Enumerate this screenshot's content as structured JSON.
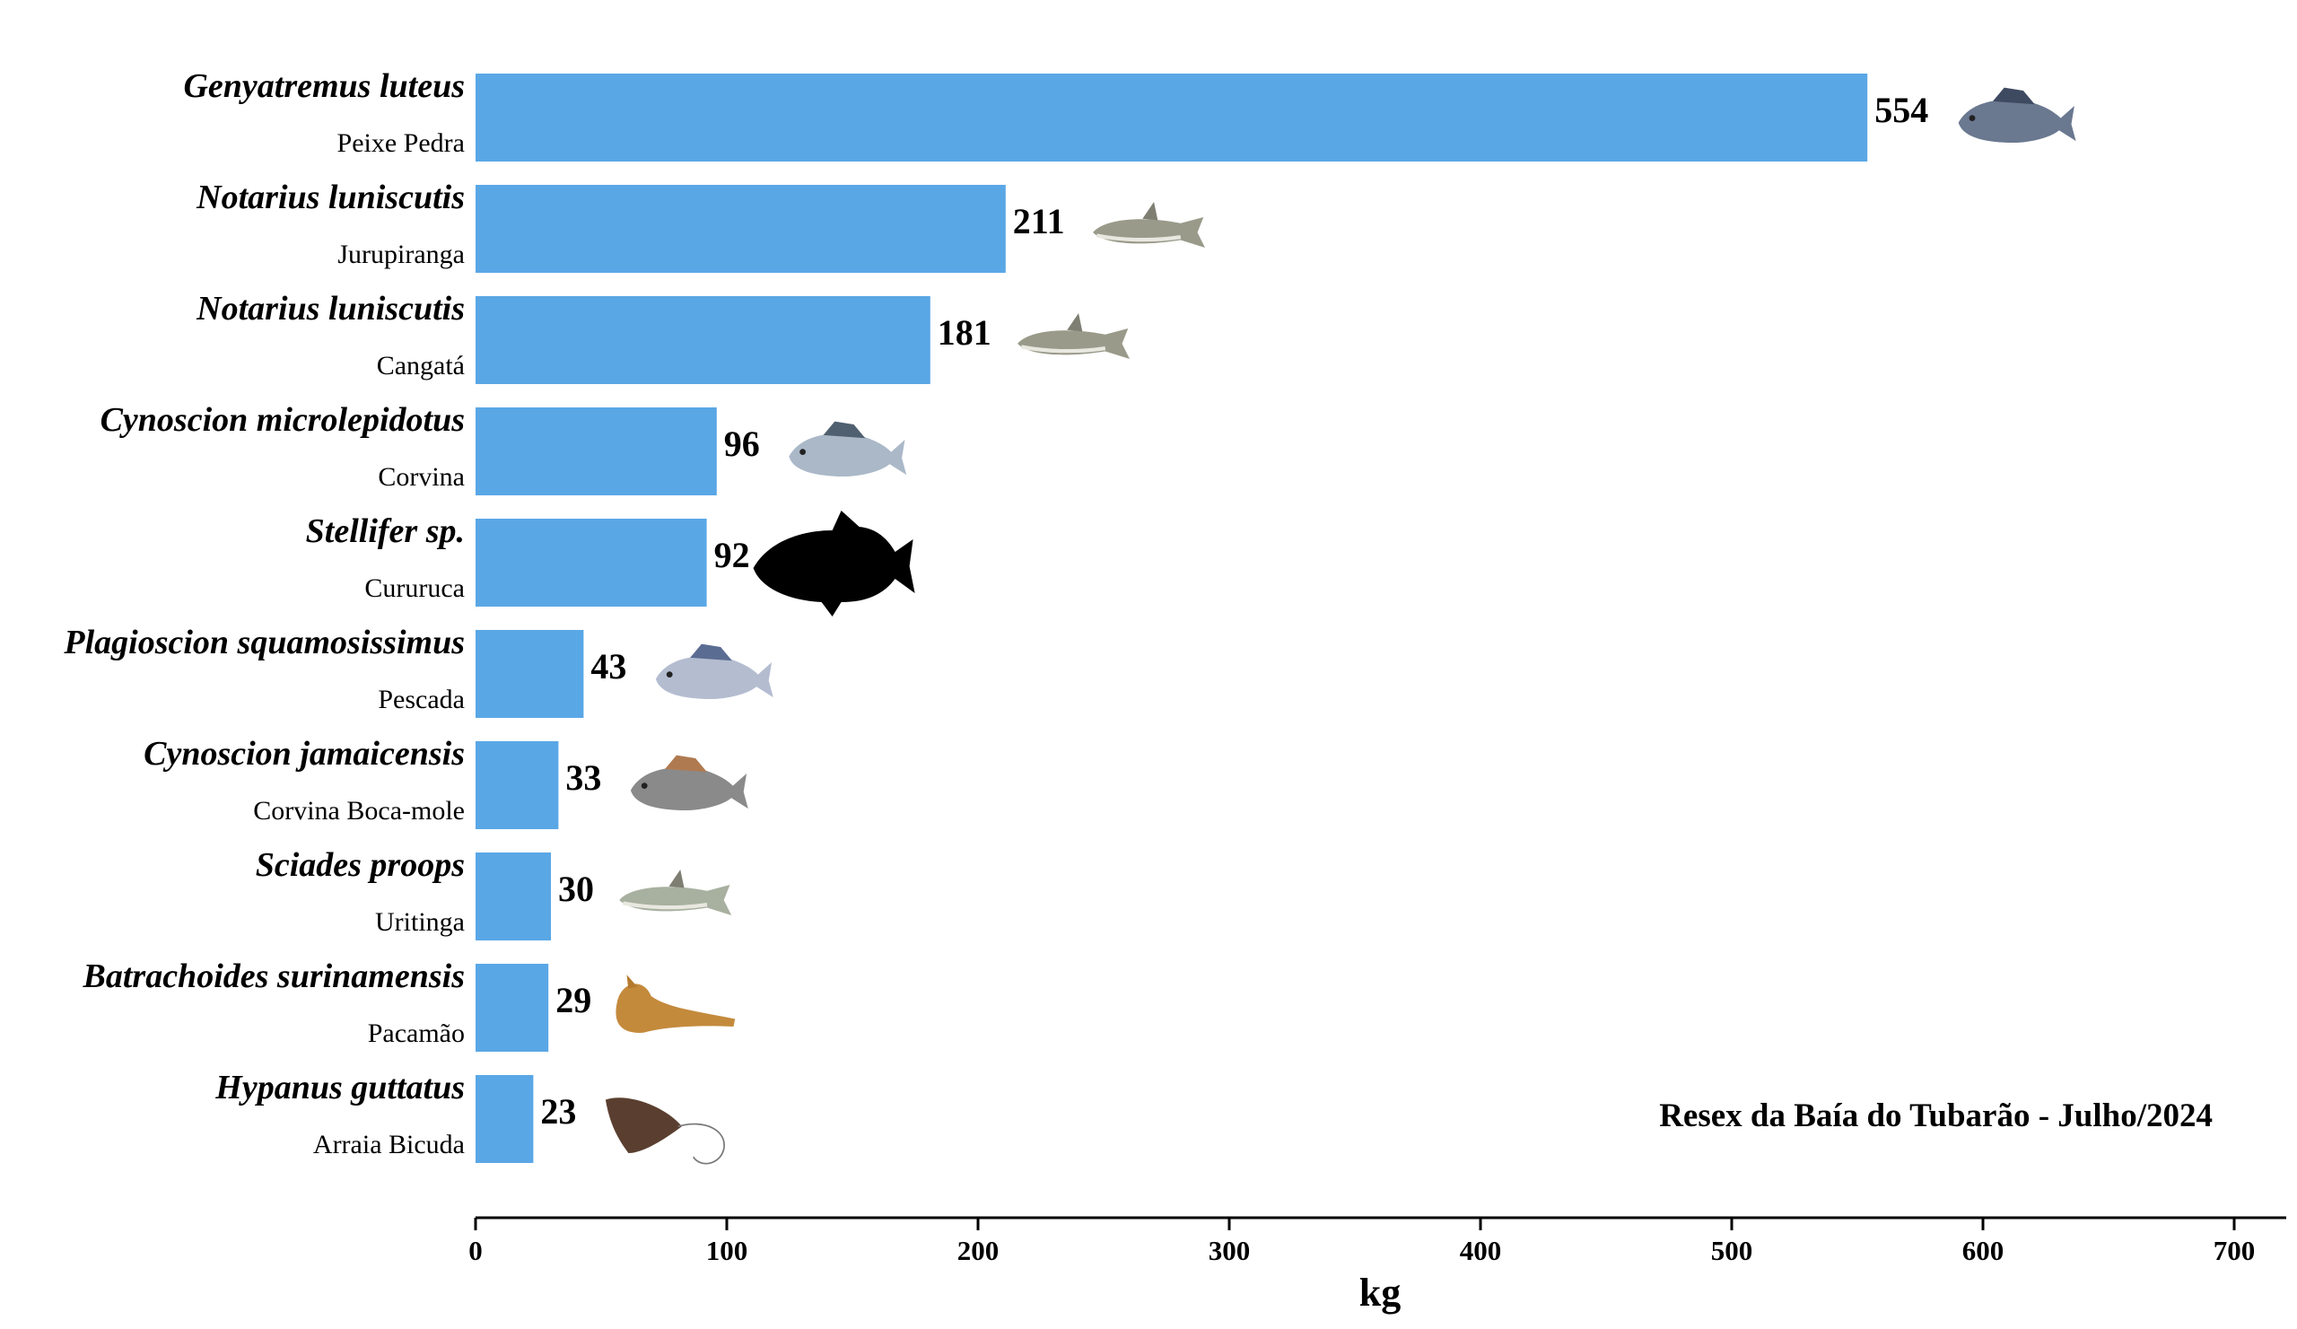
{
  "chart_data": {
    "type": "bar",
    "orientation": "horizontal",
    "bar_color": "#5aa7e6",
    "categories": [
      {
        "scientific": "Genyatremus luteus",
        "common": "Peixe Pedra",
        "icon": "peixe-pedra-fish-icon"
      },
      {
        "scientific": "Notarius luniscutis",
        "common": "Jurupiranga",
        "icon": "catfish-icon"
      },
      {
        "scientific": "Notarius luniscutis",
        "common": "Cangatá",
        "icon": "catfish-icon"
      },
      {
        "scientific": "Cynoscion microlepidotus",
        "common": "Corvina",
        "icon": "corvina-fish-icon"
      },
      {
        "scientific": "Stellifer sp.",
        "common": "Cururuca",
        "icon": "fish-silhouette-icon"
      },
      {
        "scientific": "Plagioscion squamosissimus",
        "common": "Pescada",
        "icon": "pescada-fish-icon"
      },
      {
        "scientific": "Cynoscion jamaicensis",
        "common": "Corvina Boca-mole",
        "icon": "corvina-boca-mole-fish-icon"
      },
      {
        "scientific": "Sciades proops",
        "common": "Uritinga",
        "icon": "uritinga-catfish-icon"
      },
      {
        "scientific": "Batrachoides surinamensis",
        "common": "Pacamão",
        "icon": "toadfish-icon"
      },
      {
        "scientific": "Hypanus guttatus",
        "common": "Arraia Bicuda",
        "icon": "stingray-icon"
      }
    ],
    "values": [
      554,
      211,
      181,
      96,
      92,
      43,
      33,
      30,
      29,
      23
    ],
    "value_labels": [
      "554",
      "211",
      "181",
      "96",
      "92",
      "43",
      "33",
      "30",
      "29",
      "23"
    ],
    "xlim": [
      0,
      700
    ],
    "xticks": [
      "0",
      "100",
      "200",
      "300",
      "400",
      "500",
      "600",
      "700"
    ],
    "xlabel": "kg",
    "annotation": "Resex da Baía do Tubarão - Julho/2024",
    "grid": false
  }
}
